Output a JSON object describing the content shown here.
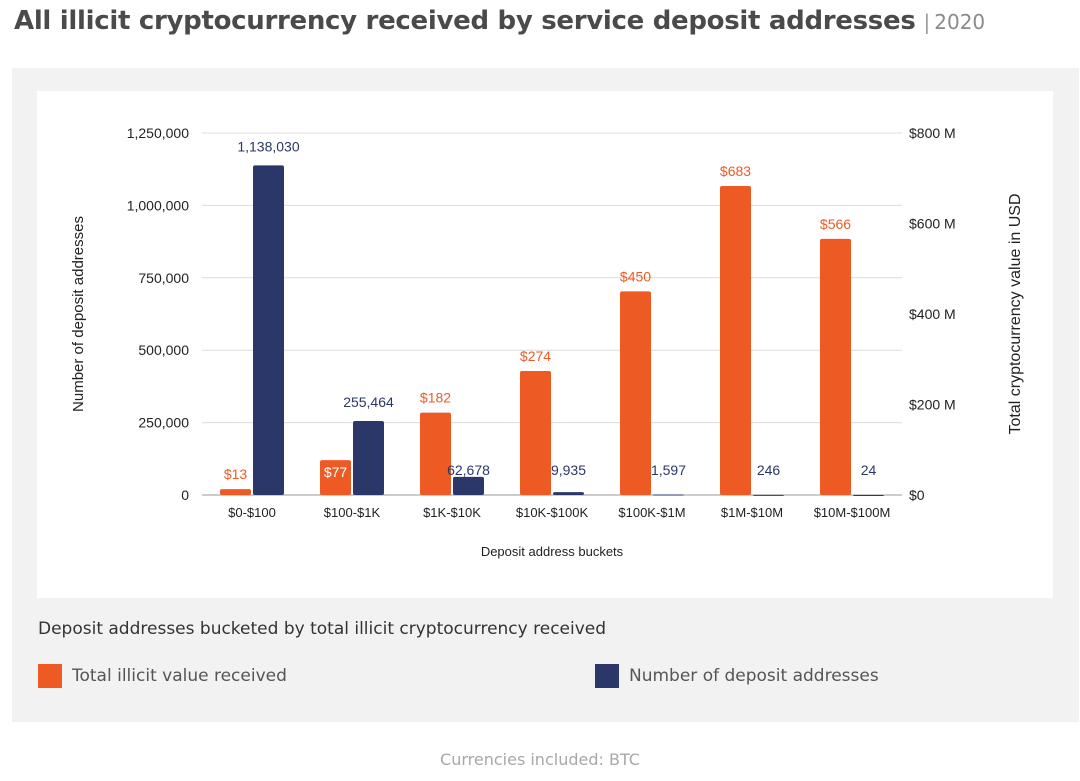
{
  "header": {
    "title": "All illicit cryptocurrency received by service deposit addresses",
    "separator": "|",
    "year": "2020"
  },
  "chart_data": {
    "type": "bar",
    "xlabel": "Deposit address buckets",
    "ylabel_left": "Number of deposit addresses",
    "ylabel_right": "Total cryptocurrency value in USD",
    "categories": [
      "$0-$100",
      "$100-$1K",
      "$1K-$10K",
      "$10K-$100K",
      "$100K-$1M",
      "$1M-$10M",
      "$10M-$100M"
    ],
    "left_axis": {
      "min": 0,
      "max": 1250000,
      "ticks": [
        0,
        250000,
        500000,
        750000,
        1000000,
        1250000
      ],
      "tick_labels": [
        "0",
        "250,000",
        "500,000",
        "750,000",
        "1,000,000",
        "1,250,000"
      ]
    },
    "right_axis": {
      "min": 0,
      "max": 800,
      "unit": "million USD",
      "ticks": [
        0,
        200,
        400,
        600,
        800
      ],
      "tick_labels": [
        "$0",
        "$200 M",
        "$400 M",
        "$600 M",
        "$800 M"
      ]
    },
    "series": [
      {
        "name": "Total illicit value received",
        "axis": "right",
        "color": "#ee5a24",
        "values": [
          13,
          77,
          182,
          274,
          450,
          683,
          566
        ],
        "labels": [
          "$13",
          "$77",
          "$182",
          "$274",
          "$450",
          "$683",
          "$566"
        ]
      },
      {
        "name": "Number of deposit addresses",
        "axis": "left",
        "color": "#2a3768",
        "values": [
          1138030,
          255464,
          62678,
          9935,
          1597,
          246,
          24
        ],
        "labels": [
          "1,138,030",
          "255,464",
          "62,678",
          "9,935",
          "1,597",
          "246",
          "24"
        ]
      }
    ],
    "grid": true
  },
  "legend": {
    "caption": "Deposit addresses bucketed by total illicit cryptocurrency received",
    "items": [
      {
        "label": "Total illicit value received",
        "color": "#ee5a24"
      },
      {
        "label": "Number of deposit addresses",
        "color": "#2a3768"
      }
    ]
  },
  "footnote": "Currencies included: BTC"
}
